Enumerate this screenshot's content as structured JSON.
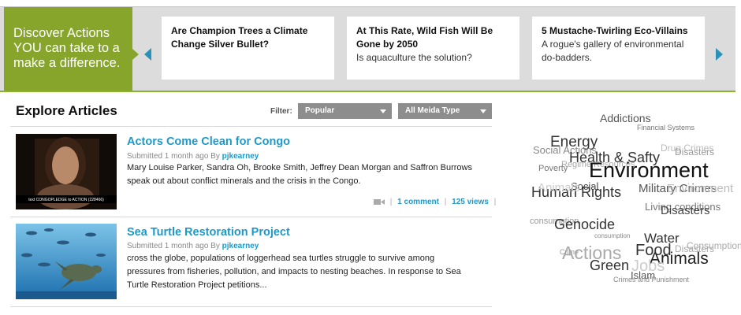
{
  "promo": {
    "line1": "Discover Actions",
    "line2": "YOU can take to a",
    "line3": "make a difference."
  },
  "carousel": {
    "items": [
      {
        "title": "Are Champion Trees a Climate Change Silver Bullet?",
        "desc": ""
      },
      {
        "title": "At This Rate, Wild Fish Will Be Gone by 2050",
        "desc": "Is aquaculture the solution?"
      },
      {
        "title": "5 Mustache-Twirling Eco-Villains",
        "desc": "A rogue's gallery of environmental do-badders."
      }
    ]
  },
  "explore": {
    "heading": "Explore Articles",
    "filter_label": "Filter:",
    "filter_value": "Popular",
    "media_value": "All Meida Type"
  },
  "articles": [
    {
      "title": "Actors Come Clean for Congo",
      "meta_prefix": "Submitted 1 month ago By",
      "author": "pjkearney",
      "desc": "Mary Louise Parker, Sandra Oh, Brooke Smith, Jeffrey Dean Morgan and Saffron Burrows speak out about conflict minerals and the crisis in the Congo.",
      "thumb_caption": "text CONGOPLEDGE to ACTION (228466)",
      "comments": "1 comment",
      "views": "125 views"
    },
    {
      "title": "Sea Turtle Restoration Project",
      "meta_prefix": "Submitted 1 month ago By",
      "author": "pjkearney",
      "desc": "cross the globe, populations of loggerhead sea turtles struggle to survive among pressures from fisheries, pollution, and impacts to nesting beaches. In response to Sea Turtle Restoration Project petitions..."
    }
  ],
  "tag_cloud": [
    "Addictions",
    "Financial Systems",
    "Energy",
    "Drug Crimes",
    "Social Actions",
    "Disasters",
    "Health & Safty",
    "Regime Resources",
    "Poverty",
    "Environment",
    "Social",
    "Human Rights",
    "Military Crimes",
    "Animals",
    "Environment",
    "Living conditions",
    "Disasters",
    "consumption",
    "Genocide",
    "consumption",
    "Water",
    "Consumption",
    "Food",
    "Disasters",
    "Actions",
    "Animals",
    "Jobs",
    "Green",
    "Islam",
    "Crimes and Punishment",
    "Crime"
  ],
  "colors": {
    "green": "#86a52a",
    "blue": "#1e98c8",
    "gray": "#8d8d8d"
  }
}
